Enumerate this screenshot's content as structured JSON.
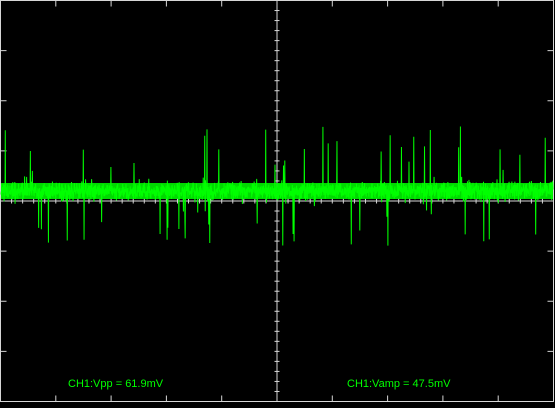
{
  "screen": {
    "background_color": "#000000",
    "grid_color": "#d6d6d6",
    "trace_color": "#00ff00",
    "text_color": "#00ff00",
    "grid": {
      "horizontal_divisions": 10,
      "vertical_divisions": 8
    }
  },
  "measurements": [
    {
      "label": "CH1:Vpp",
      "separator": " = ",
      "value": "61.9mV"
    },
    {
      "label": "CH1:Vamp",
      "separator": " = ",
      "value": "47.5mV"
    }
  ]
}
